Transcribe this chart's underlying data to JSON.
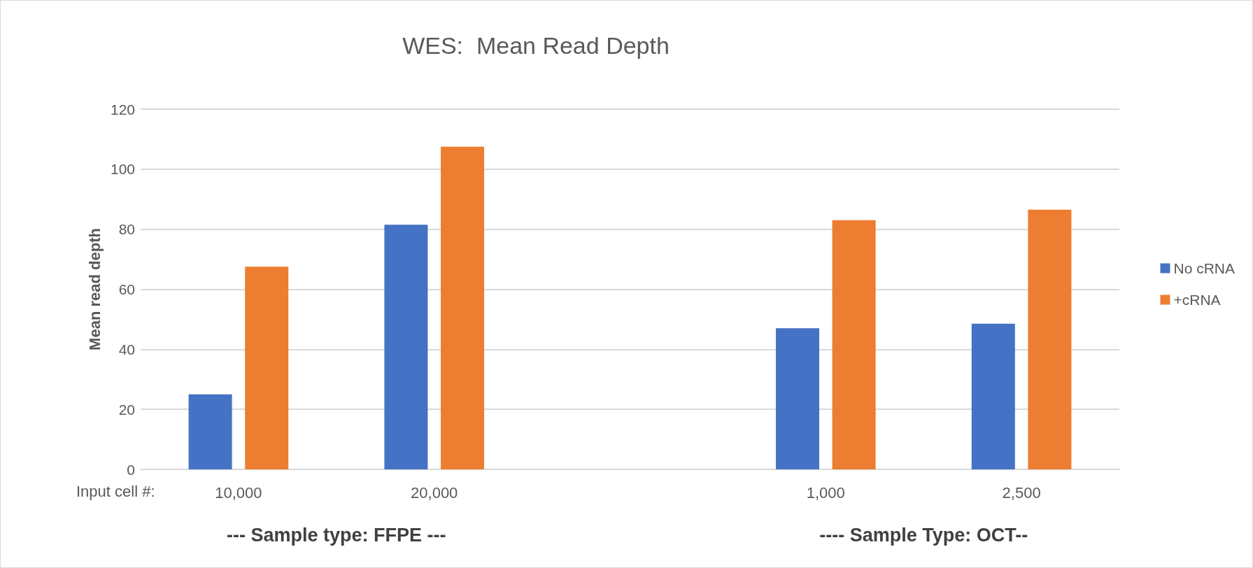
{
  "chart_data": {
    "type": "bar",
    "title": "WES:  Mean Read Depth",
    "ylabel": "Mean read depth",
    "categories": [
      "10,000",
      "20,000",
      null,
      "1,000",
      "2,500"
    ],
    "series": [
      {
        "name": "No cRNA",
        "color": "#4472c4",
        "values": [
          25,
          81.5,
          null,
          47,
          48.5
        ]
      },
      {
        "name": "+cRNA",
        "color": "#ed7d31",
        "values": [
          67.5,
          107.5,
          null,
          83,
          86.5
        ]
      }
    ],
    "ylim": [
      0,
      120
    ],
    "yticks": [
      0,
      20,
      40,
      60,
      80,
      100,
      120
    ],
    "grid": "y",
    "legend": "right",
    "annotations": [
      "Input cell #:",
      "--- Sample type: FFPE ---",
      "---- Sample Type: OCT--"
    ]
  }
}
